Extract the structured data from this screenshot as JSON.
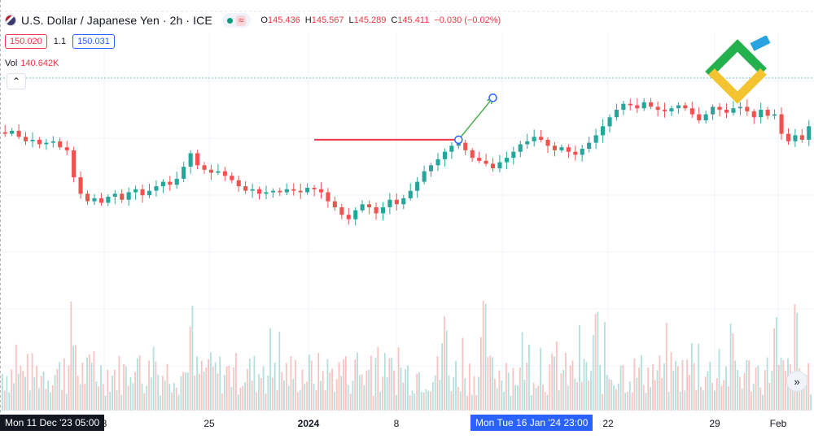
{
  "header": {
    "symbol_title": "U.S. Dollar / Japanese Yen · 2h · ICE",
    "ohlc": {
      "o_label": "O",
      "o": "145.436",
      "h_label": "H",
      "h": "145.567",
      "l_label": "L",
      "l": "145.289",
      "c_label": "C",
      "c": "145.411",
      "change": "−0.030 (−0.02%)"
    },
    "status_icon": "wave-icon"
  },
  "trade": {
    "sell_price": "150.020",
    "spread": "1.1",
    "buy_price": "150.031"
  },
  "volume": {
    "label": "Vol",
    "value": "140.642K"
  },
  "controls": {
    "collapse_icon": "chevron-up-icon",
    "scroll_icon": "double-chevron-right-icon"
  },
  "time_axis": {
    "crosshair_left": "Mon 11 Dec '23   05:00",
    "crosshair_right": "Mon   Tue 16 Jan '24   23:00",
    "ticks": [
      "8",
      "25",
      "2024",
      "8",
      "22",
      "29",
      "Feb"
    ]
  },
  "colors": {
    "up": "#26a69a",
    "down": "#ef5350",
    "drawing_red": "#f23645",
    "drawing_green": "#4caf50",
    "marker": "#2962ff"
  },
  "chart_data": {
    "type": "candlestick",
    "title": "U.S. Dollar / Japanese Yen · 2h · ICE",
    "close_series": [
      146.3,
      146.5,
      146.1,
      145.8,
      145.9,
      145.6,
      145.7,
      145.8,
      145.4,
      145.2,
      143.4,
      142.3,
      141.8,
      142.0,
      141.7,
      142.1,
      142.3,
      141.9,
      142.4,
      142.6,
      142.2,
      142.5,
      142.8,
      143.1,
      142.9,
      143.3,
      144.1,
      145.0,
      144.2,
      143.9,
      143.7,
      143.8,
      143.5,
      143.2,
      142.8,
      142.5,
      142.6,
      142.3,
      142.4,
      142.5,
      142.4,
      142.6,
      142.5,
      142.4,
      142.7,
      142.6,
      142.4,
      141.8,
      141.4,
      140.9,
      140.6,
      141.2,
      141.6,
      141.4,
      141.0,
      141.4,
      141.9,
      141.6,
      142.0,
      142.5,
      143.1,
      143.8,
      144.2,
      144.6,
      145.1,
      145.5,
      145.7,
      145.2,
      144.7,
      144.5,
      144.3,
      144.0,
      144.4,
      144.7,
      145.1,
      145.6,
      145.8,
      146.1,
      145.9,
      145.5,
      145.2,
      145.4,
      145.1,
      144.9,
      145.3,
      145.7,
      146.2,
      146.8,
      147.4,
      147.9,
      148.3,
      148.2,
      148.0,
      148.4,
      148.1,
      147.9,
      147.8,
      148.0,
      148.2,
      148.0,
      147.6,
      147.2,
      147.6,
      148.1,
      147.9,
      147.7,
      148.0,
      148.1,
      147.8,
      147.4,
      147.9,
      147.5,
      147.6,
      146.3,
      145.8,
      146.2,
      145.9,
      146.8
    ],
    "annotations": {
      "resistance_line": {
        "from_index": 45,
        "to_index": 66,
        "level": 145.9
      },
      "projection_arrow": {
        "from_index": 66,
        "from_price": 145.9,
        "to_index": 71,
        "to_price": 148.7
      }
    },
    "volume_note": "Volume histogram shown in lower pane"
  }
}
